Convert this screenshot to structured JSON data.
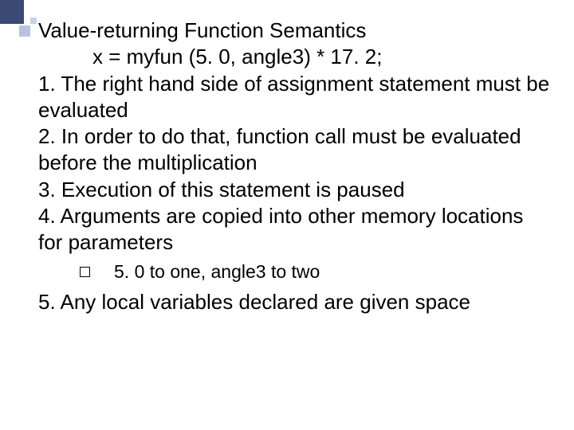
{
  "slide": {
    "title": "Value-returning Function Semantics",
    "code_line": "x = myfun (5. 0, angle3) * 17. 2;",
    "items": {
      "i1": {
        "num": "1.",
        "text": "The right hand side of assignment statement must be evaluated"
      },
      "i2": {
        "num": "2.",
        "text": "In order to do that, function call must be evaluated before the multiplication"
      },
      "i3": {
        "num": "3.",
        "text": "Execution of this statement is paused"
      },
      "i4": {
        "num": "4.",
        "text": "Arguments are copied into other memory locations for parameters"
      },
      "i5": {
        "num": "5. ",
        "text": "Any local variables declared are given space"
      }
    },
    "sub": {
      "text": "5. 0 to one, angle3 to two"
    },
    "colors": {
      "corner_dark": "#3b4a73",
      "corner_light1": "#b8c4de",
      "corner_light2": "#c8d2e8",
      "bg": "#ffffff",
      "text": "#000000"
    }
  }
}
